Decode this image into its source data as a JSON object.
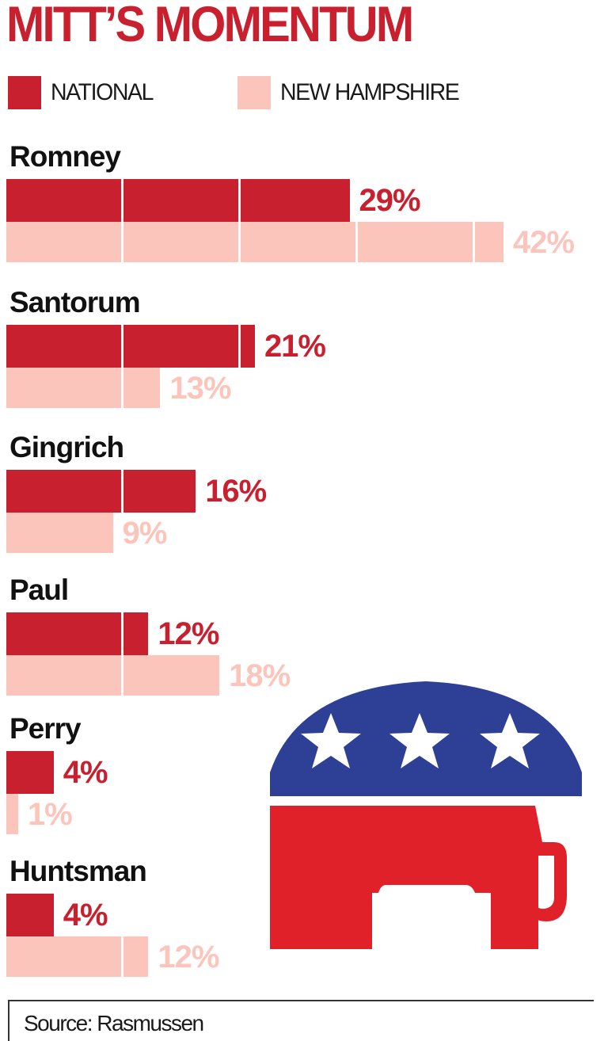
{
  "chart_data": {
    "type": "bar",
    "orientation": "horizontal",
    "title": "MITT’S MOMENTUM",
    "categories": [
      "Romney",
      "Santorum",
      "Gingrich",
      "Paul",
      "Perry",
      "Huntsman"
    ],
    "series": [
      {
        "name": "NATIONAL",
        "values": [
          29,
          21,
          16,
          12,
          4,
          4
        ],
        "labels": [
          "29%",
          "21%",
          "16%",
          "12%",
          "4%",
          "4%"
        ],
        "color": "#c8202e"
      },
      {
        "name": "NEW HAMPSHIRE",
        "values": [
          42,
          13,
          9,
          18,
          1,
          12
        ],
        "labels": [
          "42%",
          "13%",
          "9%",
          "18%",
          "1%",
          "12%"
        ],
        "color": "#fcc5bb"
      }
    ],
    "unit": "%",
    "xlim": [
      0,
      45
    ],
    "grid": false,
    "legend": "top",
    "source": "Source: Rasmussen"
  },
  "colors": {
    "title": "#c8202e",
    "national": "#c8202e",
    "new_hampshire": "#fcc5bb",
    "logo_blue": "#2e3f96",
    "logo_red": "#e02129",
    "logo_star": "#ffffff"
  },
  "icons": {
    "logo": "republican-elephant-logo"
  }
}
